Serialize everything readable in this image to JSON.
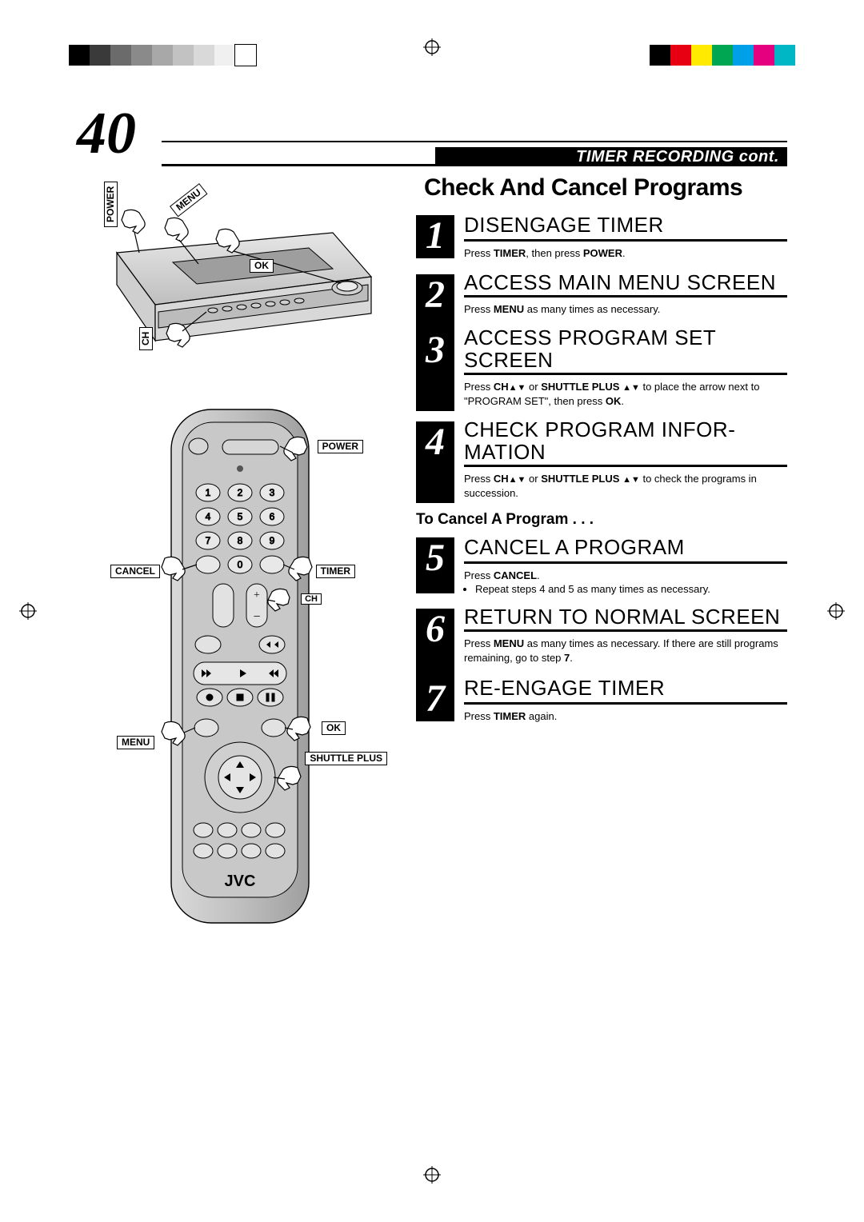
{
  "registration_colorbar_left": [
    "#000000",
    "#3a3a3a",
    "#6b6b6b",
    "#8a8a8a",
    "#a8a8a8",
    "#c2c2c2",
    "#d9d9d9",
    "#f0f0f0",
    "#ffffff"
  ],
  "registration_colorbar_right": [
    "#000000",
    "#e60012",
    "#ffea00",
    "#00a651",
    "#00a0e9",
    "#e4007f",
    "#00b7c6"
  ],
  "page_number": "40",
  "header_bar": "TIMER RECORDING cont.",
  "section_title": "Check And Cancel Programs",
  "subhead": "To Cancel A Program . . .",
  "vcr_labels": {
    "power": "POWER",
    "menu": "MENU",
    "ok": "OK",
    "ch": "CH"
  },
  "remote_labels": {
    "power": "POWER",
    "cancel": "CANCEL",
    "timer": "TIMER",
    "ch": "CH",
    "ok": "OK",
    "menu": "MENU",
    "shuttle_plus": "SHUTTLE PLUS",
    "brand": "JVC"
  },
  "steps": [
    {
      "n": "1",
      "title": "DISENGAGE TIMER",
      "body": "Press <b>TIMER</b>, then press <b>POWER</b>."
    },
    {
      "n": "2",
      "title": "ACCESS MAIN MENU SCREEN",
      "body": "Press <b>MENU</b> as many times as necessary."
    },
    {
      "n": "3",
      "title": "ACCESS PROGRAM SET SCREEN",
      "body": "Press <b>CH</b>▴▾ or <b>SHUTTLE PLUS</b> ▴▾ to place the arrow next to \"PROGRAM SET\", then press <b>OK</b>."
    },
    {
      "n": "4",
      "title": "CHECK PROGRAM INFOR­MATION",
      "body": "Press <b>CH</b>▴▾ or <b>SHUTTLE PLUS</b> ▴▾ to check the programs in succession."
    },
    {
      "n": "5",
      "title": "CANCEL A PROGRAM",
      "body": "Press <b>CANCEL</b>.",
      "bullet": "Repeat steps <b>4</b> and <b>5</b> as many times as necessary."
    },
    {
      "n": "6",
      "title": "RETURN TO NORMAL SCREEN",
      "body": "Press <b>MENU</b> as many times as necessary. If there are still programs remaining, go to step <b>7</b>."
    },
    {
      "n": "7",
      "title": "RE-ENGAGE TIMER",
      "body": "Press <b>TIMER</b> again."
    }
  ],
  "step_box_heights": [
    "54",
    "88",
    "102",
    "102",
    "70",
    "102",
    "54"
  ]
}
